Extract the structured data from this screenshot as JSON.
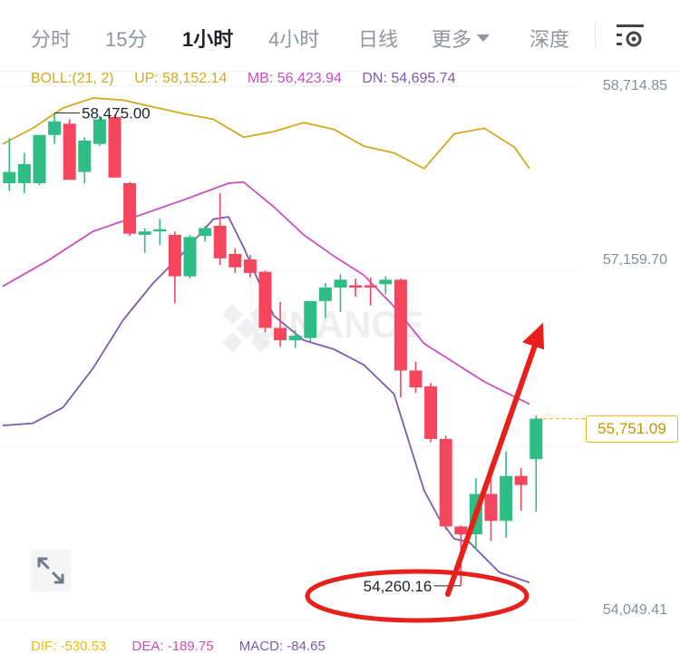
{
  "tabs": {
    "time": "分时",
    "m15": "15分",
    "h1": "1小时",
    "h4": "4小时",
    "day": "日线",
    "more": "更多",
    "depth": "深度"
  },
  "boll": {
    "label": "BOLL:(21, 2)",
    "up": "UP: 58,152.14",
    "mb": "MB: 56,423.94",
    "dn": "DN: 54,695.74",
    "color_up": "#d6a81e",
    "color_mb": "#cc4fc0",
    "color_dn": "#7c5ab0"
  },
  "price_axis": {
    "top": "58,714.85",
    "mid": "57,159.70",
    "bottom": "54,049.41"
  },
  "annotations": {
    "high": "58,475.00",
    "low": "54,260.16",
    "current": "55,751.09"
  },
  "watermark": "BINANCE",
  "bottom_indicators": {
    "a": "DIF: -530.53",
    "b": "DEA: -189.75",
    "c": "MACD: -84.65"
  },
  "colors": {
    "up_candle": "#2ebd85",
    "down_candle": "#f6465d",
    "accent": "#f0b90b",
    "annotation_red": "#e8201c"
  },
  "chart_data": {
    "type": "candlestick",
    "timeframe": "1小时",
    "ylim": [
      54049.41,
      58714.85
    ],
    "candles": [
      {
        "o": 57850,
        "h": 58250,
        "l": 57780,
        "c": 57950
      },
      {
        "o": 57850,
        "h": 58120,
        "l": 57760,
        "c": 58020
      },
      {
        "o": 57850,
        "h": 58250,
        "l": 57830,
        "c": 58280
      },
      {
        "o": 58280,
        "h": 58475,
        "l": 58200,
        "c": 58400
      },
      {
        "o": 58380,
        "h": 58420,
        "l": 57900,
        "c": 57880
      },
      {
        "o": 57950,
        "h": 58260,
        "l": 57850,
        "c": 58230
      },
      {
        "o": 58200,
        "h": 58450,
        "l": 58180,
        "c": 58420
      },
      {
        "o": 58440,
        "h": 58460,
        "l": 57900,
        "c": 57900
      },
      {
        "o": 57850,
        "h": 57860,
        "l": 57380,
        "c": 57400
      },
      {
        "o": 57390,
        "h": 57450,
        "l": 57230,
        "c": 57420
      },
      {
        "o": 57420,
        "h": 57530,
        "l": 57300,
        "c": 57440
      },
      {
        "o": 57390,
        "h": 57420,
        "l": 56780,
        "c": 57020
      },
      {
        "o": 57020,
        "h": 57390,
        "l": 57000,
        "c": 57370
      },
      {
        "o": 57380,
        "h": 57470,
        "l": 57330,
        "c": 57450
      },
      {
        "o": 57470,
        "h": 57760,
        "l": 57120,
        "c": 57180
      },
      {
        "o": 57220,
        "h": 57270,
        "l": 57050,
        "c": 57100
      },
      {
        "o": 57170,
        "h": 57210,
        "l": 57010,
        "c": 57050
      },
      {
        "o": 57060,
        "h": 57070,
        "l": 56520,
        "c": 56560
      },
      {
        "o": 56560,
        "h": 56790,
        "l": 56390,
        "c": 56450
      },
      {
        "o": 56450,
        "h": 56540,
        "l": 56380,
        "c": 56490
      },
      {
        "o": 56470,
        "h": 56800,
        "l": 56440,
        "c": 56800
      },
      {
        "o": 56800,
        "h": 56960,
        "l": 56650,
        "c": 56920
      },
      {
        "o": 56920,
        "h": 57040,
        "l": 56700,
        "c": 56990
      },
      {
        "o": 56940,
        "h": 57000,
        "l": 56840,
        "c": 56920
      },
      {
        "o": 56940,
        "h": 57010,
        "l": 56760,
        "c": 56920
      },
      {
        "o": 56950,
        "h": 57020,
        "l": 56860,
        "c": 56990
      },
      {
        "o": 56990,
        "h": 57000,
        "l": 55940,
        "c": 56180
      },
      {
        "o": 56180,
        "h": 56260,
        "l": 55980,
        "c": 56030
      },
      {
        "o": 56040,
        "h": 56070,
        "l": 55540,
        "c": 55570
      },
      {
        "o": 55570,
        "h": 55600,
        "l": 54760,
        "c": 54790
      },
      {
        "o": 54790,
        "h": 54800,
        "l": 54260.16,
        "c": 54720
      },
      {
        "o": 54720,
        "h": 55220,
        "l": 54580,
        "c": 55080
      },
      {
        "o": 55080,
        "h": 55300,
        "l": 54660,
        "c": 54840
      },
      {
        "o": 54840,
        "h": 55460,
        "l": 54690,
        "c": 55240
      },
      {
        "o": 55240,
        "h": 55310,
        "l": 54930,
        "c": 55160
      },
      {
        "o": 55390,
        "h": 55780,
        "l": 54920,
        "c": 55751.09
      }
    ],
    "boll_up": [
      [
        0,
        58200
      ],
      [
        2,
        58340
      ],
      [
        4,
        58520
      ],
      [
        6,
        58610
      ],
      [
        8,
        58590
      ],
      [
        10,
        58530
      ],
      [
        12,
        58470
      ],
      [
        14,
        58420
      ],
      [
        16,
        58260
      ],
      [
        18,
        58310
      ],
      [
        20,
        58390
      ],
      [
        22,
        58330
      ],
      [
        24,
        58180
      ],
      [
        26,
        58120
      ],
      [
        28,
        57980
      ],
      [
        30,
        58290
      ],
      [
        32,
        58340
      ],
      [
        34,
        58170
      ],
      [
        35,
        57980
      ]
    ],
    "boll_mid": [
      [
        0,
        56930
      ],
      [
        3,
        57160
      ],
      [
        6,
        57420
      ],
      [
        9,
        57560
      ],
      [
        12,
        57700
      ],
      [
        15,
        57850
      ],
      [
        16,
        57860
      ],
      [
        18,
        57640
      ],
      [
        20,
        57390
      ],
      [
        22,
        57200
      ],
      [
        24,
        57030
      ],
      [
        26,
        56750
      ],
      [
        28,
        56420
      ],
      [
        30,
        56250
      ],
      [
        32,
        56080
      ],
      [
        35,
        55880
      ]
    ],
    "boll_dn": [
      [
        0,
        55690
      ],
      [
        2,
        55710
      ],
      [
        4,
        55850
      ],
      [
        6,
        56200
      ],
      [
        8,
        56630
      ],
      [
        10,
        56960
      ],
      [
        12,
        57230
      ],
      [
        14,
        57530
      ],
      [
        15,
        57550
      ],
      [
        16,
        57280
      ],
      [
        18,
        56670
      ],
      [
        20,
        56450
      ],
      [
        22,
        56370
      ],
      [
        24,
        56230
      ],
      [
        26,
        55970
      ],
      [
        27,
        55540
      ],
      [
        28,
        55110
      ],
      [
        29,
        54860
      ],
      [
        30,
        54680
      ],
      [
        31,
        54650
      ],
      [
        33,
        54380
      ],
      [
        35,
        54290
      ]
    ]
  }
}
